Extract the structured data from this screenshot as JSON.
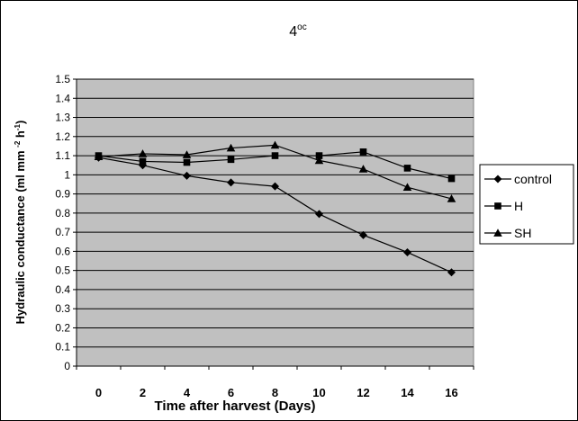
{
  "chart_data": {
    "type": "line",
    "title": {
      "main": "4",
      "superscript": "oc"
    },
    "xlabel": "Time after harvest (Days)",
    "ylabel": {
      "before": "Hydraulic conductance (ml mm ",
      "sup1": "-2",
      "middle": " h",
      "sup2": "-1",
      "after": ")"
    },
    "x": [
      0,
      2,
      4,
      6,
      8,
      10,
      12,
      14,
      16
    ],
    "x_tick_labels": [
      "0",
      "2",
      "4",
      "6",
      "8",
      "10",
      "12",
      "14",
      "16"
    ],
    "y_tick_labels": [
      "0",
      "0.1",
      "0.2",
      "0.3",
      "0.4",
      "0.5",
      "0.6",
      "0.7",
      "0.8",
      "0.9",
      "1",
      "1.1",
      "1.2",
      "1.3",
      "1.4",
      "1.5"
    ],
    "ylim": [
      0,
      1.5
    ],
    "y_step": 0.1,
    "grid": true,
    "plot_background": "#c0c0c0",
    "legend_position": "right",
    "series": [
      {
        "name": "control",
        "marker": "diamond",
        "values": [
          1.09,
          1.05,
          0.995,
          0.96,
          0.94,
          0.795,
          0.685,
          0.595,
          0.49
        ]
      },
      {
        "name": "H",
        "marker": "square",
        "values": [
          1.1,
          1.07,
          1.065,
          1.08,
          1.1,
          1.1,
          1.12,
          1.035,
          0.98
        ]
      },
      {
        "name": "SH",
        "marker": "triangle",
        "values": [
          1.095,
          1.11,
          1.105,
          1.14,
          1.155,
          1.075,
          1.03,
          0.935,
          0.875
        ]
      }
    ]
  }
}
